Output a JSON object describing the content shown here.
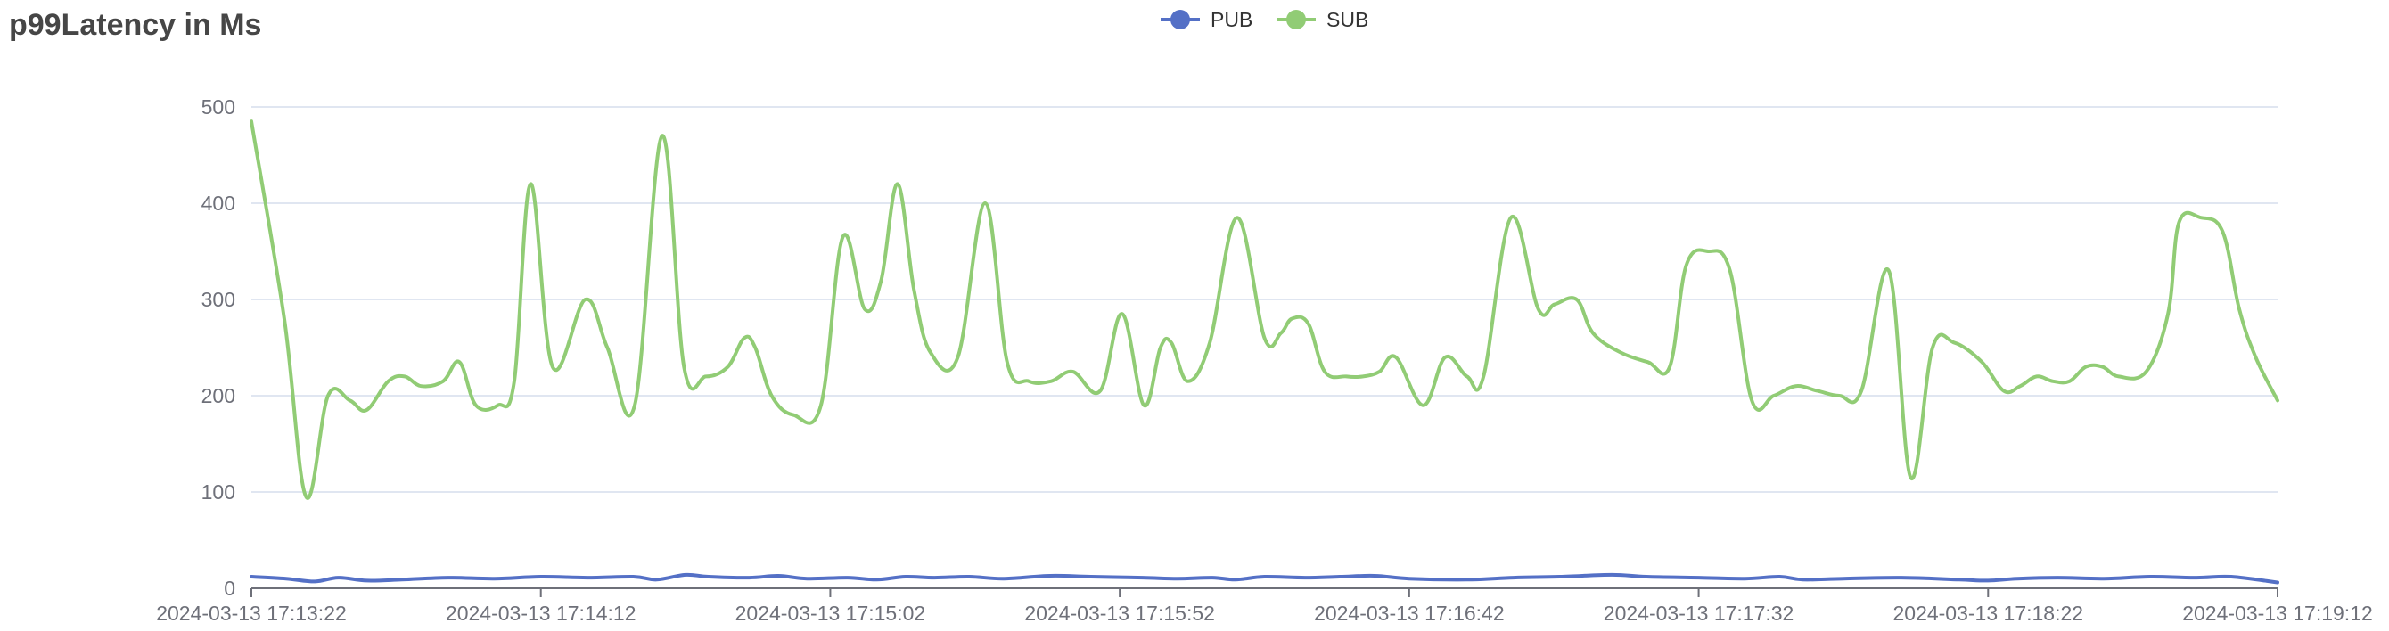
{
  "chart_data": {
    "type": "line",
    "title": "p99Latency in Ms",
    "xlabel": "",
    "ylabel": "",
    "ylim": [
      0,
      500
    ],
    "yticks": [
      0,
      100,
      200,
      300,
      400,
      500
    ],
    "xlim": [
      0,
      350
    ],
    "xticks": [
      {
        "x": 0,
        "label": "2024-03-13 17:13:22"
      },
      {
        "x": 50,
        "label": "2024-03-13 17:14:12"
      },
      {
        "x": 100,
        "label": "2024-03-13 17:15:02"
      },
      {
        "x": 150,
        "label": "2024-03-13 17:15:52"
      },
      {
        "x": 200,
        "label": "2024-03-13 17:16:42"
      },
      {
        "x": 250,
        "label": "2024-03-13 17:17:32"
      },
      {
        "x": 300,
        "label": "2024-03-13 17:18:22"
      },
      {
        "x": 350,
        "label": "2024-03-13 17:19:12"
      }
    ],
    "grid": true,
    "legend_position": "top-center",
    "series": [
      {
        "name": "PUB",
        "color": "#5470c6",
        "points": [
          [
            0,
            12
          ],
          [
            6,
            10
          ],
          [
            11,
            7
          ],
          [
            15,
            11
          ],
          [
            20,
            8
          ],
          [
            26,
            9
          ],
          [
            34,
            11
          ],
          [
            42,
            10
          ],
          [
            50,
            12
          ],
          [
            58,
            11
          ],
          [
            66,
            12
          ],
          [
            70,
            9
          ],
          [
            75,
            14
          ],
          [
            79,
            12
          ],
          [
            86,
            11
          ],
          [
            91,
            13
          ],
          [
            96,
            10
          ],
          [
            103,
            11
          ],
          [
            108,
            9
          ],
          [
            113,
            12
          ],
          [
            118,
            11
          ],
          [
            124,
            12
          ],
          [
            130,
            10
          ],
          [
            138,
            13
          ],
          [
            145,
            12
          ],
          [
            154,
            11
          ],
          [
            160,
            10
          ],
          [
            166,
            11
          ],
          [
            170,
            9
          ],
          [
            175,
            12
          ],
          [
            182,
            11
          ],
          [
            188,
            12
          ],
          [
            194,
            13
          ],
          [
            200,
            10
          ],
          [
            210,
            9
          ],
          [
            218,
            11
          ],
          [
            226,
            12
          ],
          [
            235,
            14
          ],
          [
            241,
            12
          ],
          [
            250,
            11
          ],
          [
            258,
            10
          ],
          [
            264,
            12
          ],
          [
            268,
            9
          ],
          [
            275,
            10
          ],
          [
            285,
            11
          ],
          [
            295,
            9
          ],
          [
            300,
            8
          ],
          [
            305,
            10
          ],
          [
            312,
            11
          ],
          [
            320,
            10
          ],
          [
            328,
            12
          ],
          [
            336,
            11
          ],
          [
            342,
            12
          ],
          [
            350,
            6
          ]
        ]
      },
      {
        "name": "SUB",
        "color": "#91cc75",
        "points": [
          [
            0,
            485
          ],
          [
            6,
            280
          ],
          [
            10,
            95
          ],
          [
            14,
            200
          ],
          [
            18,
            195
          ],
          [
            21,
            185
          ],
          [
            25,
            215
          ],
          [
            28,
            220
          ],
          [
            31,
            210
          ],
          [
            35,
            215
          ],
          [
            38,
            235
          ],
          [
            41,
            190
          ],
          [
            45,
            190
          ],
          [
            48,
            215
          ],
          [
            51,
            420
          ],
          [
            55,
            230
          ],
          [
            61,
            300
          ],
          [
            65,
            250
          ],
          [
            70,
            190
          ],
          [
            75,
            470
          ],
          [
            79,
            230
          ],
          [
            83,
            220
          ],
          [
            87,
            230
          ],
          [
            90,
            260
          ],
          [
            92,
            250
          ],
          [
            95,
            200
          ],
          [
            99,
            180
          ],
          [
            104,
            190
          ],
          [
            108,
            365
          ],
          [
            112,
            290
          ],
          [
            115,
            320
          ],
          [
            118,
            420
          ],
          [
            121,
            310
          ],
          [
            124,
            245
          ],
          [
            129,
            240
          ],
          [
            134,
            400
          ],
          [
            138,
            235
          ],
          [
            142,
            215
          ],
          [
            146,
            215
          ],
          [
            150,
            225
          ],
          [
            155,
            205
          ],
          [
            159,
            285
          ],
          [
            163,
            190
          ],
          [
            166,
            250
          ],
          [
            168,
            255
          ],
          [
            171,
            215
          ],
          [
            175,
            255
          ],
          [
            180,
            385
          ],
          [
            185,
            260
          ],
          [
            188,
            265
          ],
          [
            190,
            280
          ],
          [
            193,
            275
          ],
          [
            196,
            225
          ],
          [
            200,
            220
          ],
          [
            203,
            220
          ],
          [
            206,
            225
          ],
          [
            209,
            240
          ],
          [
            214,
            190
          ],
          [
            218,
            240
          ],
          [
            222,
            220
          ],
          [
            225,
            220
          ],
          [
            230,
            385
          ],
          [
            235,
            290
          ],
          [
            238,
            295
          ],
          [
            242,
            300
          ],
          [
            245,
            265
          ],
          [
            250,
            245
          ],
          [
            255,
            235
          ],
          [
            259,
            230
          ],
          [
            262,
            335
          ],
          [
            266,
            350
          ],
          [
            270,
            330
          ],
          [
            274,
            195
          ],
          [
            278,
            200
          ],
          [
            282,
            210
          ],
          [
            286,
            205
          ],
          [
            290,
            200
          ],
          [
            294,
            205
          ],
          [
            299,
            330
          ],
          [
            303,
            115
          ],
          [
            307,
            250
          ],
          [
            311,
            255
          ],
          [
            316,
            235
          ],
          [
            320,
            205
          ],
          [
            323,
            210
          ],
          [
            326,
            220
          ],
          [
            329,
            215
          ],
          [
            332,
            215
          ],
          [
            335,
            230
          ],
          [
            338,
            230
          ],
          [
            341,
            220
          ],
          [
            346,
            225
          ],
          [
            350,
            285
          ],
          [
            352,
            380
          ],
          [
            356,
            385
          ],
          [
            360,
            370
          ],
          [
            363,
            290
          ],
          [
            366,
            240
          ],
          [
            370,
            195
          ]
        ]
      }
    ]
  }
}
